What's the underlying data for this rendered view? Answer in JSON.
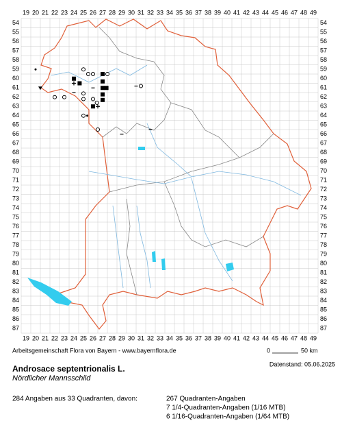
{
  "grid": {
    "columns": [
      19,
      20,
      21,
      22,
      23,
      24,
      25,
      26,
      27,
      28,
      29,
      30,
      31,
      32,
      33,
      34,
      35,
      36,
      37,
      38,
      39,
      40,
      41,
      42,
      43,
      44,
      45,
      46,
      47,
      48,
      49
    ],
    "rows": [
      54,
      55,
      56,
      57,
      58,
      59,
      60,
      61,
      62,
      63,
      64,
      65,
      66,
      67,
      68,
      69,
      70,
      71,
      72,
      73,
      74,
      75,
      76,
      77,
      78,
      79,
      80,
      81,
      82,
      83,
      84,
      85,
      86,
      87
    ]
  },
  "markers": [
    {
      "x": 20,
      "y": 59,
      "symbol": "dot"
    },
    {
      "x": 20.5,
      "y": 61,
      "symbol": "triangle"
    },
    {
      "x": 22,
      "y": 62,
      "symbol": "circle"
    },
    {
      "x": 23,
      "y": 62,
      "symbol": "circle"
    },
    {
      "x": 24,
      "y": 60,
      "symbol": "square"
    },
    {
      "x": 24,
      "y": 60.5,
      "symbol": "plus"
    },
    {
      "x": 24.6,
      "y": 60.5,
      "symbol": "square"
    },
    {
      "x": 24,
      "y": 61.5,
      "symbol": "minus"
    },
    {
      "x": 25,
      "y": 59,
      "symbol": "circle"
    },
    {
      "x": 25.5,
      "y": 59.5,
      "symbol": "circle"
    },
    {
      "x": 26,
      "y": 59.5,
      "symbol": "circle"
    },
    {
      "x": 27,
      "y": 59.5,
      "symbol": "square"
    },
    {
      "x": 27.5,
      "y": 59.5,
      "symbol": "circle"
    },
    {
      "x": 27,
      "y": 60.3,
      "symbol": "square"
    },
    {
      "x": 26,
      "y": 61,
      "symbol": "minus"
    },
    {
      "x": 27,
      "y": 61,
      "symbol": "square"
    },
    {
      "x": 27.4,
      "y": 61,
      "symbol": "square"
    },
    {
      "x": 25,
      "y": 61.6,
      "symbol": "circle"
    },
    {
      "x": 27,
      "y": 61.7,
      "symbol": "square"
    },
    {
      "x": 26,
      "y": 62.2,
      "symbol": "circle"
    },
    {
      "x": 26.4,
      "y": 62.6,
      "symbol": "circle"
    },
    {
      "x": 27,
      "y": 62.3,
      "symbol": "square"
    },
    {
      "x": 25,
      "y": 62.2,
      "symbol": "circle"
    },
    {
      "x": 26,
      "y": 63,
      "symbol": "square"
    },
    {
      "x": 26.5,
      "y": 63,
      "symbol": "plus"
    },
    {
      "x": 25,
      "y": 64,
      "symbol": "circle"
    },
    {
      "x": 25.4,
      "y": 64,
      "symbol": "dot"
    },
    {
      "x": 26.5,
      "y": 65.5,
      "symbol": "circle"
    },
    {
      "x": 29,
      "y": 66,
      "symbol": "minus"
    },
    {
      "x": 31,
      "y": 60.8,
      "symbol": "circle"
    },
    {
      "x": 30.5,
      "y": 60.8,
      "symbol": "minus"
    },
    {
      "x": 32,
      "y": 65.5,
      "symbol": "minus"
    }
  ],
  "footer": {
    "credit": "Arbeitsgemeinschaft Flora von Bayern - www.bayernflora.de",
    "scale_start": "0",
    "scale_end": "50 km",
    "date": "Datenstand: 05.06.2025"
  },
  "species": {
    "name": "Androsace septentrionalis L.",
    "common_name": "Nördlicher Mannsschild"
  },
  "stats": {
    "summary": "284 Angaben aus 33 Quadranten, davon:",
    "lines": [
      "267 Quadranten-Angaben",
      "7 1/4-Quadranten-Angaben (1/16 MTB)",
      "6 1/16-Quadranten-Angaben (1/64 MTB)"
    ]
  }
}
